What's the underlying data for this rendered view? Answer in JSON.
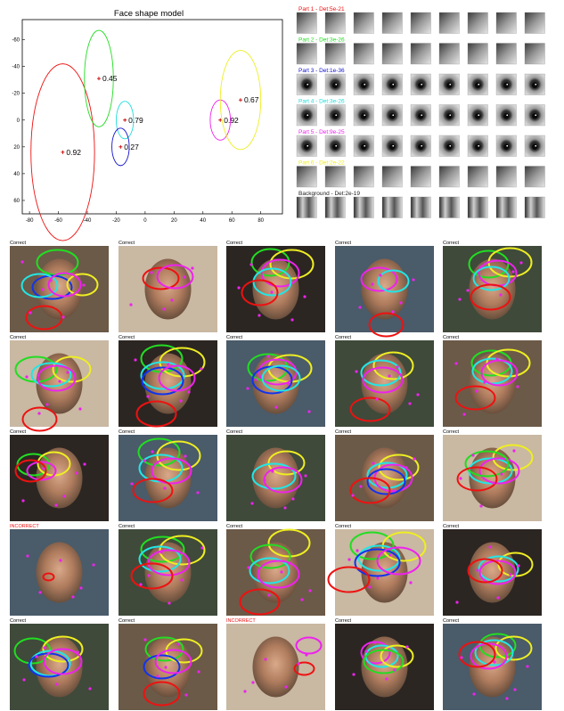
{
  "shape_model": {
    "title": "Face shape model",
    "xlim": [
      -85,
      95
    ],
    "ylim": [
      -75,
      70
    ],
    "x_ticks": [
      -80,
      -60,
      -40,
      -20,
      0,
      20,
      40,
      60,
      80
    ],
    "y_ticks": [
      -60,
      -40,
      -20,
      0,
      20,
      40,
      60
    ],
    "parts": [
      {
        "cx": -57,
        "cy": 24,
        "rx": 22,
        "ry": 66,
        "color": "#ee1111",
        "weight": "0.92"
      },
      {
        "cx": -32,
        "cy": -31,
        "rx": 10,
        "ry": 36,
        "color": "#22dd22",
        "weight": "0.45"
      },
      {
        "cx": -14,
        "cy": 0,
        "rx": 6,
        "ry": 14,
        "color": "#22dddd",
        "weight": "0.79"
      },
      {
        "cx": -17,
        "cy": 20,
        "rx": 6,
        "ry": 14,
        "color": "#1111cc",
        "weight": "0.27"
      },
      {
        "cx": 52,
        "cy": 0,
        "rx": 7,
        "ry": 15,
        "color": "#ee22ee",
        "weight": "0.92"
      },
      {
        "cx": 66,
        "cy": -15,
        "rx": 14,
        "ry": 37,
        "color": "#eeee22",
        "weight": "0.67"
      }
    ]
  },
  "appearance": {
    "rows": [
      {
        "label": "Part 1 - Det:5e-21",
        "color": "#ee1111"
      },
      {
        "label": "Part 2 - Det:3e-26",
        "color": "#22dd22"
      },
      {
        "label": "Part 3 - Det:1e-36",
        "color": "#1111cc"
      },
      {
        "label": "Part 4 - Det:3e-26",
        "color": "#22dddd"
      },
      {
        "label": "Part 5 - Det:9e-25",
        "color": "#ee22ee"
      },
      {
        "label": "Part 6 - Det:2e-22",
        "color": "#eeee22"
      },
      {
        "label": "Background - Det:2e-19",
        "color": "#222222"
      }
    ]
  },
  "detections": [
    {
      "label": "Correct"
    },
    {
      "label": "Correct"
    },
    {
      "label": "Correct"
    },
    {
      "label": "Correct"
    },
    {
      "label": "Correct"
    },
    {
      "label": "Correct"
    },
    {
      "label": "Correct"
    },
    {
      "label": "Correct"
    },
    {
      "label": "Correct"
    },
    {
      "label": "Correct"
    },
    {
      "label": "Correct"
    },
    {
      "label": "Correct"
    },
    {
      "label": "Correct"
    },
    {
      "label": "Correct"
    },
    {
      "label": "Correct"
    },
    {
      "label": "INCORRECT",
      "color": "#ee1111"
    },
    {
      "label": "Correct"
    },
    {
      "label": "Correct"
    },
    {
      "label": "Correct"
    },
    {
      "label": "Correct"
    },
    {
      "label": "Correct"
    },
    {
      "label": "Correct"
    },
    {
      "label": "INCORRECT",
      "color": "#ee1111"
    },
    {
      "label": "Correct"
    },
    {
      "label": "Correct"
    }
  ]
}
